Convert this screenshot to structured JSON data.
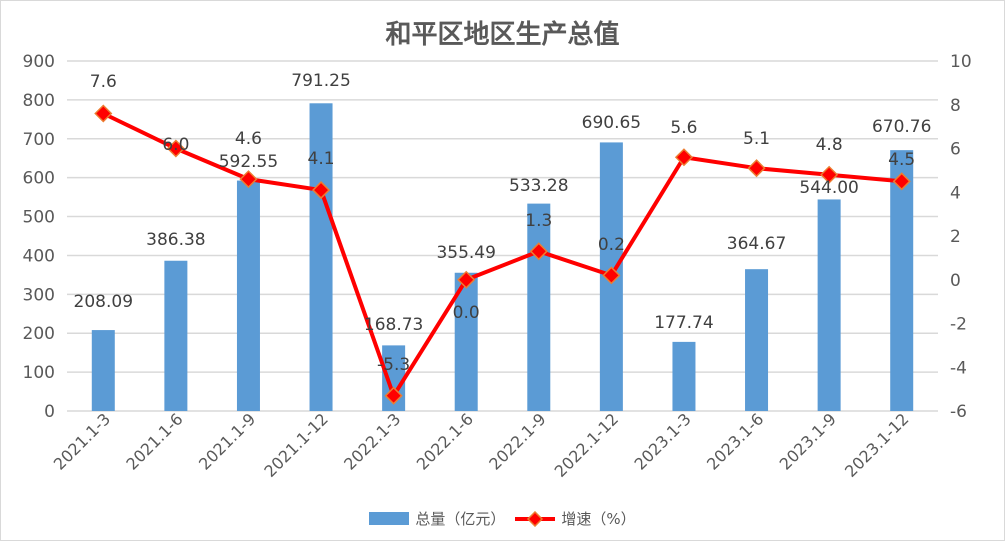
{
  "chart_data": {
    "type": "bar+line",
    "title": "和平区地区生产总值",
    "categories": [
      "2021.1-3",
      "2021.1-6",
      "2021.1-9",
      "2021.1-12",
      "2022.1-3",
      "2022.1-6",
      "2022.1-9",
      "2022.1-12",
      "2023.1-3",
      "2023.1-6",
      "2023.1-9",
      "2023.1-12"
    ],
    "series": [
      {
        "name": "总量（亿元）",
        "type": "bar",
        "axis": "left",
        "color": "#5b9bd5",
        "values": [
          208.09,
          386.38,
          592.55,
          791.25,
          168.73,
          355.49,
          533.28,
          690.65,
          177.74,
          364.67,
          544.0,
          670.76
        ],
        "labels": [
          "208.09",
          "386.38",
          "592.55",
          "791.25",
          "168.73",
          "355.49",
          "533.28",
          "690.65",
          "177.74",
          "364.67",
          "544.00",
          "670.76"
        ]
      },
      {
        "name": "增速（%）",
        "type": "line",
        "axis": "right",
        "color": "#ff0000",
        "marker": "diamond",
        "values": [
          7.6,
          6.0,
          4.6,
          4.1,
          -5.3,
          0.0,
          1.3,
          0.2,
          5.6,
          5.1,
          4.8,
          4.5
        ],
        "labels": [
          "7.6",
          "6.0",
          "4.6",
          "4.1",
          "-5.3",
          "0.0",
          "1.3",
          "0.2",
          "5.6",
          "5.1",
          "4.8",
          "4.5"
        ]
      }
    ],
    "left_axis": {
      "ylim": [
        0,
        900
      ],
      "ticks": [
        "0",
        "100",
        "200",
        "300",
        "400",
        "500",
        "600",
        "700",
        "800",
        "900"
      ]
    },
    "right_axis": {
      "ylim": [
        -6,
        10
      ],
      "ticks": [
        "-6",
        "-4",
        "-2",
        "0",
        "2",
        "4",
        "6",
        "8",
        "10"
      ]
    },
    "grid": true,
    "legend_position": "bottom"
  },
  "legend": {
    "bar_label": "总量（亿元）",
    "line_label": "增速（%）"
  }
}
